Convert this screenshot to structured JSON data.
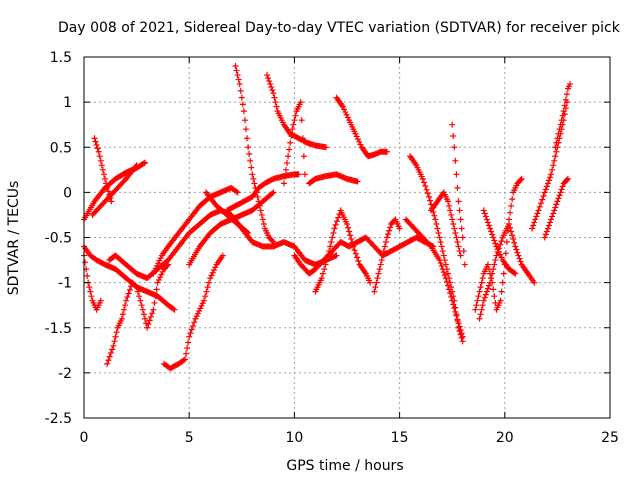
{
  "chart_data": {
    "type": "scatter",
    "title": "Day 008 of 2021, Sidereal Day-to-day VTEC variation (SDTVAR) for receiver pick",
    "xlabel": "GPS time / hours",
    "ylabel": "SDTVAR / TECUs",
    "xlim": [
      0,
      25
    ],
    "ylim": [
      -2.5,
      1.5
    ],
    "x_ticks": [
      0,
      5,
      10,
      15,
      20,
      25
    ],
    "x_tick_labels": [
      "0",
      "5",
      "10",
      "15",
      "20",
      "25"
    ],
    "y_ticks": [
      -2.5,
      -2,
      -1.5,
      -1,
      -0.5,
      0,
      0.5,
      1,
      1.5
    ],
    "y_tick_labels": [
      "-2.5",
      "-2",
      "-1.5",
      "-1",
      "-0.5",
      "0",
      "0.5",
      "1",
      "1.5"
    ],
    "grid": true,
    "marker": "plus",
    "color": "#ff0000",
    "series": [
      {
        "values": [
          [
            0.0,
            -0.3
          ],
          [
            0.5,
            -0.1
          ],
          [
            1.0,
            0.05
          ],
          [
            1.5,
            0.15
          ],
          [
            2.0,
            0.22
          ],
          [
            2.5,
            0.27
          ],
          [
            2.9,
            0.33
          ]
        ]
      },
      {
        "values": [
          [
            0.4,
            -0.25
          ],
          [
            0.8,
            -0.15
          ],
          [
            1.2,
            -0.05
          ],
          [
            1.6,
            0.05
          ],
          [
            2.0,
            0.15
          ],
          [
            2.5,
            0.3
          ]
        ]
      },
      {
        "values": [
          [
            0.5,
            0.6
          ],
          [
            0.7,
            0.45
          ],
          [
            0.9,
            0.25
          ],
          [
            1.1,
            0.05
          ],
          [
            1.3,
            -0.1
          ]
        ]
      },
      {
        "values": [
          [
            0.0,
            -0.6
          ],
          [
            0.3,
            -0.7
          ],
          [
            0.6,
            -0.75
          ],
          [
            1.0,
            -0.8
          ],
          [
            1.5,
            -0.85
          ],
          [
            2.0,
            -0.95
          ],
          [
            2.5,
            -1.05
          ],
          [
            3.0,
            -1.1
          ],
          [
            3.5,
            -1.15
          ],
          [
            4.0,
            -1.25
          ],
          [
            4.3,
            -1.3
          ]
        ]
      },
      {
        "values": [
          [
            0.0,
            -0.7
          ],
          [
            0.2,
            -1.0
          ],
          [
            0.4,
            -1.2
          ],
          [
            0.6,
            -1.3
          ],
          [
            0.8,
            -1.2
          ]
        ]
      },
      {
        "values": [
          [
            1.1,
            -1.9
          ],
          [
            1.4,
            -1.7
          ],
          [
            1.6,
            -1.5
          ],
          [
            1.8,
            -1.4
          ],
          [
            2.0,
            -1.2
          ],
          [
            2.3,
            -1.0
          ],
          [
            2.5,
            -1.05
          ],
          [
            2.8,
            -1.3
          ],
          [
            3.0,
            -1.5
          ],
          [
            3.3,
            -1.3
          ],
          [
            3.5,
            -1.0
          ],
          [
            3.8,
            -0.85
          ],
          [
            4.0,
            -0.8
          ]
        ]
      },
      {
        "values": [
          [
            1.2,
            -0.75
          ],
          [
            1.5,
            -0.7
          ],
          [
            2.0,
            -0.8
          ],
          [
            2.5,
            -0.9
          ],
          [
            3.0,
            -0.95
          ],
          [
            3.5,
            -0.85
          ],
          [
            4.0,
            -0.75
          ],
          [
            4.5,
            -0.6
          ],
          [
            5.0,
            -0.45
          ],
          [
            5.5,
            -0.35
          ],
          [
            6.0,
            -0.25
          ],
          [
            6.5,
            -0.2
          ],
          [
            7.0,
            -0.25
          ],
          [
            7.5,
            -0.4
          ],
          [
            8.0,
            -0.55
          ],
          [
            8.5,
            -0.6
          ],
          [
            9.0,
            -0.6
          ],
          [
            9.5,
            -0.55
          ],
          [
            10.0,
            -0.6
          ],
          [
            10.5,
            -0.75
          ],
          [
            11.0,
            -0.8
          ],
          [
            11.5,
            -0.75
          ],
          [
            12.0,
            -0.7
          ]
        ]
      },
      {
        "values": [
          [
            3.3,
            -0.9
          ],
          [
            3.7,
            -0.7
          ],
          [
            4.0,
            -0.6
          ],
          [
            4.5,
            -0.45
          ],
          [
            5.0,
            -0.3
          ],
          [
            5.5,
            -0.15
          ],
          [
            6.0,
            -0.05
          ],
          [
            6.5,
            0.0
          ],
          [
            7.0,
            0.05
          ],
          [
            7.3,
            0.0
          ]
        ]
      },
      {
        "values": [
          [
            3.8,
            -1.9
          ],
          [
            4.1,
            -1.95
          ],
          [
            4.5,
            -1.9
          ],
          [
            4.8,
            -1.85
          ],
          [
            5.0,
            -1.6
          ],
          [
            5.3,
            -1.4
          ],
          [
            5.7,
            -1.2
          ],
          [
            6.0,
            -0.95
          ],
          [
            6.3,
            -0.8
          ],
          [
            6.6,
            -0.7
          ]
        ]
      },
      {
        "values": [
          [
            5.0,
            -0.8
          ],
          [
            5.5,
            -0.6
          ],
          [
            6.0,
            -0.45
          ],
          [
            6.5,
            -0.35
          ],
          [
            7.0,
            -0.3
          ],
          [
            7.5,
            -0.25
          ],
          [
            8.0,
            -0.2
          ],
          [
            8.5,
            -0.1
          ],
          [
            9.0,
            0.0
          ]
        ]
      },
      {
        "values": [
          [
            5.8,
            0.0
          ],
          [
            6.3,
            -0.15
          ],
          [
            6.8,
            -0.25
          ],
          [
            7.3,
            -0.35
          ],
          [
            7.8,
            -0.45
          ]
        ]
      },
      {
        "values": [
          [
            6.8,
            -0.2
          ],
          [
            7.2,
            -0.15
          ],
          [
            7.6,
            -0.1
          ],
          [
            8.0,
            -0.05
          ],
          [
            8.3,
            0.05
          ],
          [
            8.6,
            0.1
          ],
          [
            9.0,
            0.15
          ],
          [
            9.5,
            0.18
          ],
          [
            10.0,
            0.2
          ],
          [
            10.2,
            0.2
          ]
        ]
      },
      {
        "values": [
          [
            7.2,
            1.4
          ],
          [
            7.4,
            1.2
          ],
          [
            7.6,
            0.9
          ],
          [
            7.8,
            0.5
          ],
          [
            8.0,
            0.2
          ],
          [
            8.2,
            0.0
          ],
          [
            8.4,
            -0.2
          ],
          [
            8.6,
            -0.4
          ],
          [
            8.8,
            -0.5
          ],
          [
            9.0,
            -0.55
          ]
        ]
      },
      {
        "values": [
          [
            8.7,
            1.3
          ],
          [
            9.0,
            1.1
          ],
          [
            9.2,
            0.9
          ],
          [
            9.5,
            0.75
          ],
          [
            9.8,
            0.65
          ],
          [
            10.2,
            0.6
          ],
          [
            10.6,
            0.55
          ],
          [
            11.0,
            0.52
          ],
          [
            11.5,
            0.5
          ]
        ]
      },
      {
        "values": [
          [
            9.5,
            0.1
          ],
          [
            9.7,
            0.4
          ],
          [
            9.9,
            0.7
          ],
          [
            10.1,
            0.9
          ],
          [
            10.3,
            1.0
          ],
          [
            10.4,
            0.6
          ],
          [
            10.5,
            0.2
          ]
        ]
      },
      {
        "values": [
          [
            10.7,
            0.1
          ],
          [
            11.0,
            0.15
          ],
          [
            11.5,
            0.18
          ],
          [
            12.0,
            0.2
          ],
          [
            12.5,
            0.15
          ],
          [
            13.0,
            0.12
          ]
        ]
      },
      {
        "values": [
          [
            12.0,
            1.05
          ],
          [
            12.3,
            0.95
          ],
          [
            12.6,
            0.8
          ],
          [
            12.9,
            0.65
          ],
          [
            13.2,
            0.5
          ],
          [
            13.5,
            0.4
          ],
          [
            13.8,
            0.42
          ],
          [
            14.1,
            0.45
          ],
          [
            14.4,
            0.45
          ]
        ]
      },
      {
        "values": [
          [
            10.0,
            -0.7
          ],
          [
            10.3,
            -0.8
          ],
          [
            10.7,
            -0.9
          ],
          [
            11.0,
            -0.85
          ],
          [
            11.4,
            -0.75
          ],
          [
            11.8,
            -0.65
          ],
          [
            12.2,
            -0.55
          ],
          [
            12.6,
            -0.6
          ],
          [
            13.0,
            -0.55
          ],
          [
            13.4,
            -0.5
          ],
          [
            13.8,
            -0.6
          ],
          [
            14.2,
            -0.7
          ],
          [
            14.6,
            -0.65
          ],
          [
            15.0,
            -0.6
          ],
          [
            15.4,
            -0.55
          ],
          [
            15.8,
            -0.5
          ],
          [
            16.2,
            -0.55
          ],
          [
            16.6,
            -0.6
          ]
        ]
      },
      {
        "values": [
          [
            11.0,
            -1.1
          ],
          [
            11.3,
            -0.95
          ],
          [
            11.6,
            -0.7
          ],
          [
            11.9,
            -0.4
          ],
          [
            12.2,
            -0.2
          ],
          [
            12.5,
            -0.35
          ],
          [
            12.8,
            -0.6
          ],
          [
            13.1,
            -0.8
          ],
          [
            13.4,
            -0.9
          ],
          [
            13.6,
            -1.0
          ]
        ]
      },
      {
        "values": [
          [
            13.8,
            -1.1
          ],
          [
            14.0,
            -0.9
          ],
          [
            14.2,
            -0.7
          ],
          [
            14.4,
            -0.5
          ],
          [
            14.6,
            -0.35
          ],
          [
            14.8,
            -0.3
          ],
          [
            15.0,
            -0.4
          ]
        ]
      },
      {
        "values": [
          [
            15.5,
            0.4
          ],
          [
            15.8,
            0.3
          ],
          [
            16.1,
            0.15
          ],
          [
            16.4,
            -0.05
          ],
          [
            16.7,
            -0.3
          ],
          [
            17.0,
            -0.6
          ],
          [
            17.3,
            -0.9
          ],
          [
            17.6,
            -1.2
          ],
          [
            17.8,
            -1.5
          ],
          [
            18.0,
            -1.65
          ]
        ]
      },
      {
        "values": [
          [
            15.3,
            -0.3
          ],
          [
            15.7,
            -0.4
          ],
          [
            16.1,
            -0.5
          ],
          [
            16.5,
            -0.6
          ],
          [
            16.9,
            -0.75
          ],
          [
            17.2,
            -0.95
          ],
          [
            17.5,
            -1.2
          ],
          [
            17.8,
            -1.45
          ],
          [
            18.0,
            -1.6
          ]
        ]
      },
      {
        "values": [
          [
            16.5,
            -0.2
          ],
          [
            16.8,
            -0.1
          ],
          [
            17.1,
            0.0
          ],
          [
            17.3,
            -0.1
          ],
          [
            17.5,
            -0.3
          ],
          [
            17.7,
            -0.5
          ],
          [
            17.9,
            -0.7
          ]
        ]
      },
      {
        "values": [
          [
            17.5,
            0.75
          ],
          [
            17.6,
            0.5
          ],
          [
            17.7,
            0.2
          ],
          [
            17.8,
            -0.1
          ],
          [
            17.9,
            -0.3
          ],
          [
            18.0,
            -0.5
          ],
          [
            18.1,
            -0.8
          ]
        ]
      },
      {
        "values": [
          [
            18.6,
            -1.3
          ],
          [
            18.8,
            -1.1
          ],
          [
            19.0,
            -0.9
          ],
          [
            19.2,
            -0.8
          ],
          [
            19.4,
            -1.0
          ],
          [
            19.6,
            -1.3
          ],
          [
            19.8,
            -1.2
          ],
          [
            20.0,
            -0.8
          ],
          [
            20.2,
            -0.3
          ],
          [
            20.4,
            0.0
          ],
          [
            20.6,
            0.1
          ],
          [
            20.8,
            0.15
          ]
        ]
      },
      {
        "values": [
          [
            18.8,
            -1.4
          ],
          [
            19.0,
            -1.2
          ],
          [
            19.3,
            -1.0
          ],
          [
            19.6,
            -0.7
          ],
          [
            19.9,
            -0.5
          ],
          [
            20.2,
            -0.35
          ],
          [
            20.5,
            -0.6
          ],
          [
            20.8,
            -0.8
          ],
          [
            21.1,
            -0.9
          ],
          [
            21.4,
            -1.0
          ]
        ]
      },
      {
        "values": [
          [
            19.0,
            -0.2
          ],
          [
            19.3,
            -0.4
          ],
          [
            19.6,
            -0.6
          ],
          [
            19.9,
            -0.75
          ],
          [
            20.2,
            -0.85
          ],
          [
            20.5,
            -0.9
          ]
        ]
      },
      {
        "values": [
          [
            21.3,
            -0.4
          ],
          [
            21.6,
            -0.2
          ],
          [
            21.9,
            0.0
          ],
          [
            22.2,
            0.2
          ],
          [
            22.4,
            0.4
          ],
          [
            22.6,
            0.6
          ],
          [
            22.8,
            0.8
          ],
          [
            22.95,
            1.0
          ]
        ]
      },
      {
        "values": [
          [
            22.4,
            0.5
          ],
          [
            22.6,
            0.7
          ],
          [
            22.8,
            0.9
          ],
          [
            23.0,
            1.15
          ],
          [
            23.1,
            1.2
          ]
        ]
      },
      {
        "values": [
          [
            21.9,
            -0.5
          ],
          [
            22.2,
            -0.3
          ],
          [
            22.5,
            -0.1
          ],
          [
            22.8,
            0.1
          ],
          [
            23.0,
            0.15
          ]
        ]
      }
    ]
  }
}
